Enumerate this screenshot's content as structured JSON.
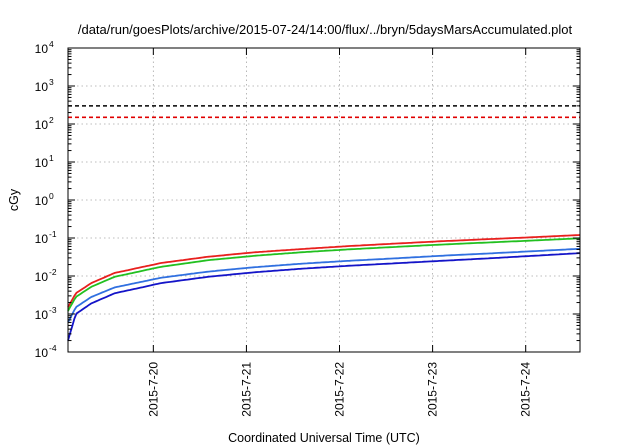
{
  "chart_data": {
    "type": "line",
    "title": "/data/run/goesPlots/archive/2015-07-24/14:00/flux/../bryn/5daysMarsAccumulated.plot",
    "xlabel": "Coordinated Universal Time (UTC)",
    "ylabel": "cGy",
    "y_scale": "log",
    "x_range": [
      "2015-07-19 02:00",
      "2015-07-24 14:00"
    ],
    "ylim": [
      0.0001,
      10000
    ],
    "x_ticks": [
      "2015-7-20",
      "2015-7-21",
      "2015-7-22",
      "2015-7-23",
      "2015-7-24"
    ],
    "y_ticks": [
      {
        "value": 0.0001,
        "base": "10",
        "exp": "-4"
      },
      {
        "value": 0.001,
        "base": "10",
        "exp": "-3"
      },
      {
        "value": 0.01,
        "base": "10",
        "exp": "-2"
      },
      {
        "value": 0.1,
        "base": "10",
        "exp": "-1"
      },
      {
        "value": 1,
        "base": "10",
        "exp": "0"
      },
      {
        "value": 10,
        "base": "10",
        "exp": "1"
      },
      {
        "value": 100,
        "base": "10",
        "exp": "2"
      },
      {
        "value": 1000,
        "base": "10",
        "exp": "3"
      },
      {
        "value": 10000,
        "base": "10",
        "exp": "4"
      }
    ],
    "grid": true,
    "reference_lines": [
      {
        "value": 300,
        "color": "#000000",
        "style": "dashed"
      },
      {
        "value": 150,
        "color": "#e00000",
        "style": "dashed"
      }
    ],
    "series": [
      {
        "color": "#e8201e",
        "x": [
          "2015-07-19 02:00",
          "2015-07-19 04:00",
          "2015-07-19 08:00",
          "2015-07-19 14:00",
          "2015-07-20 02:00",
          "2015-07-20 14:00",
          "2015-07-21 02:00",
          "2015-07-21 14:00",
          "2015-07-22 02:00",
          "2015-07-22 14:00",
          "2015-07-23 02:00",
          "2015-07-23 14:00",
          "2015-07-24 02:00",
          "2015-07-24 14:00"
        ],
        "y": [
          0.0015,
          0.0035,
          0.0065,
          0.012,
          0.022,
          0.032,
          0.042,
          0.051,
          0.061,
          0.071,
          0.082,
          0.093,
          0.105,
          0.12
        ]
      },
      {
        "color": "#22c020",
        "x": [
          "2015-07-19 02:00",
          "2015-07-19 04:00",
          "2015-07-19 08:00",
          "2015-07-19 14:00",
          "2015-07-20 02:00",
          "2015-07-20 14:00",
          "2015-07-21 02:00",
          "2015-07-21 14:00",
          "2015-07-22 02:00",
          "2015-07-22 14:00",
          "2015-07-23 02:00",
          "2015-07-23 14:00",
          "2015-07-24 02:00",
          "2015-07-24 14:00"
        ],
        "y": [
          0.0012,
          0.0028,
          0.0052,
          0.0095,
          0.0175,
          0.026,
          0.034,
          0.042,
          0.05,
          0.058,
          0.067,
          0.076,
          0.086,
          0.098
        ]
      },
      {
        "color": "#3070e0",
        "x": [
          "2015-07-19 02:00",
          "2015-07-19 04:00",
          "2015-07-19 08:00",
          "2015-07-19 14:00",
          "2015-07-20 02:00",
          "2015-07-20 14:00",
          "2015-07-21 02:00",
          "2015-07-21 14:00",
          "2015-07-22 02:00",
          "2015-07-22 14:00",
          "2015-07-23 02:00",
          "2015-07-23 14:00",
          "2015-07-24 02:00",
          "2015-07-24 14:00"
        ],
        "y": [
          0.0006,
          0.0015,
          0.0028,
          0.005,
          0.009,
          0.013,
          0.017,
          0.021,
          0.025,
          0.029,
          0.034,
          0.039,
          0.045,
          0.052
        ]
      },
      {
        "color": "#1414c8",
        "x": [
          "2015-07-19 02:00",
          "2015-07-19 04:00",
          "2015-07-19 08:00",
          "2015-07-19 14:00",
          "2015-07-20 02:00",
          "2015-07-20 14:00",
          "2015-07-21 02:00",
          "2015-07-21 14:00",
          "2015-07-22 02:00",
          "2015-07-22 14:00",
          "2015-07-23 02:00",
          "2015-07-23 14:00",
          "2015-07-24 02:00",
          "2015-07-24 14:00"
        ],
        "y": [
          0.0002,
          0.001,
          0.0019,
          0.0035,
          0.0065,
          0.0095,
          0.0125,
          0.0155,
          0.0185,
          0.0215,
          0.025,
          0.029,
          0.034,
          0.04
        ]
      }
    ]
  }
}
